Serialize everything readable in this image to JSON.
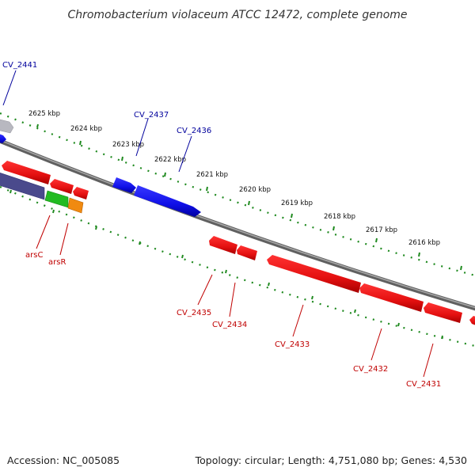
{
  "title": "Chromobacterium violaceum ATCC 12472, complete genome",
  "footer": {
    "accession": "Accession: NC_005085",
    "topology": "Topology: circular; Length: 4,751,080 bp; Genes: 4,530"
  },
  "colors": {
    "backbone": "#808080",
    "ticks": "#1f8a1f",
    "forward_gene": "#1010e8",
    "reverse_gene": "#ee1111",
    "forward_label": "#00009c",
    "reverse_label": "#c00000",
    "pseudo_gene": "#b8b8c0",
    "ars_operon_dark": "#4a4a8c",
    "arsC_gene": "#22bb22",
    "arsR_gene": "#f08a10"
  },
  "kbp_labels": [
    "2625 kbp",
    "2624 kbp",
    "2623 kbp",
    "2622 kbp",
    "2621 kbp",
    "2620 kbp",
    "2619 kbp",
    "2618 kbp",
    "2617 kbp",
    "2616 kbp"
  ],
  "gene_labels": {
    "cv2441": "CV_2441",
    "cv2437": "CV_2437",
    "cv2436": "CV_2436",
    "arsC": "arsC",
    "arsR": "arsR",
    "cv2435": "CV_2435",
    "cv2434": "CV_2434",
    "cv2433": "CV_2433",
    "cv2432": "CV_2432",
    "cv2431": "CV_2431"
  }
}
